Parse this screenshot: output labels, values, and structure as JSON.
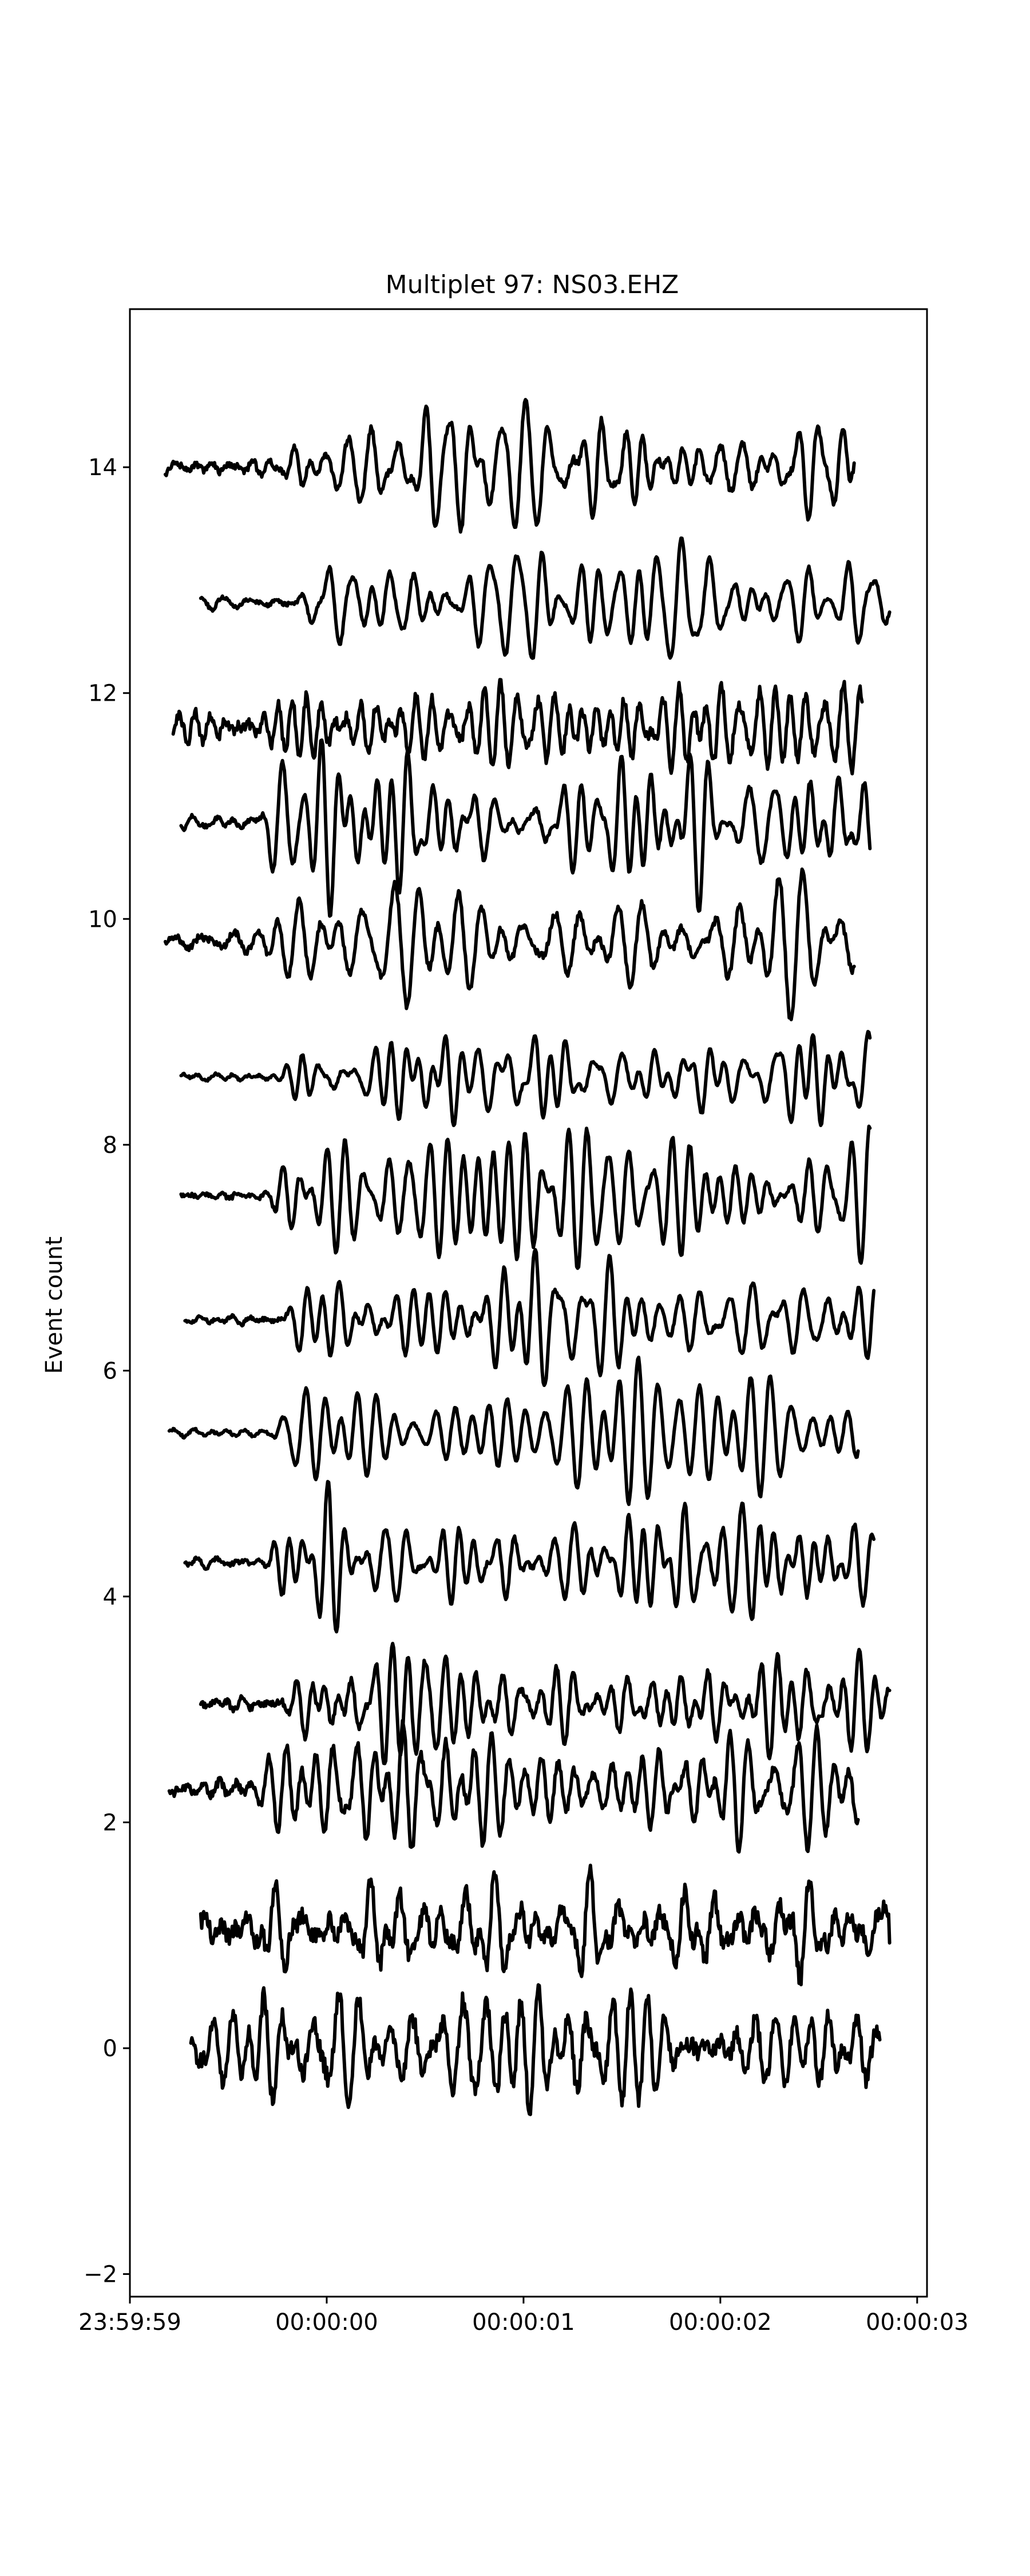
{
  "chart_data": {
    "type": "line",
    "title": "Multiplet 97: NS03.EHZ",
    "xlabel": "",
    "ylabel": "Event count",
    "xticks": [
      {
        "t": 0,
        "label": "23:59:59"
      },
      {
        "t": 1,
        "label": "00:00:00"
      },
      {
        "t": 2,
        "label": "00:00:01"
      },
      {
        "t": 3,
        "label": "00:00:02"
      },
      {
        "t": 4,
        "label": "00:00:03"
      }
    ],
    "yticks": [
      -2,
      0,
      2,
      4,
      6,
      8,
      10,
      12,
      14
    ],
    "xlim": [
      0,
      4.05
    ],
    "ylim": [
      -2.2,
      15.4
    ],
    "grid": false,
    "legend": "none",
    "trace_color": "#000000",
    "series": [
      {
        "offset": 14,
        "t_start": 0.18,
        "t_end": 3.68,
        "onset": 0.75,
        "pre_amp": 0.07,
        "post_amp": 0.42,
        "seed": 14
      },
      {
        "offset": 12.8,
        "t_start": 0.36,
        "t_end": 3.86,
        "onset": 0.85,
        "pre_amp": 0.04,
        "post_amp": 0.44,
        "seed": 13
      },
      {
        "offset": 11.7,
        "t_start": 0.22,
        "t_end": 3.72,
        "onset": 0.65,
        "pre_amp": 0.12,
        "post_amp": 0.4,
        "seed": 12
      },
      {
        "offset": 10.85,
        "t_start": 0.26,
        "t_end": 3.76,
        "onset": 0.6,
        "pre_amp": 0.05,
        "post_amp": 0.42,
        "seed": 11
      },
      {
        "offset": 9.8,
        "t_start": 0.18,
        "t_end": 3.68,
        "onset": 0.65,
        "pre_amp": 0.08,
        "post_amp": 0.45,
        "seed": 10
      },
      {
        "offset": 8.6,
        "t_start": 0.26,
        "t_end": 3.76,
        "onset": 0.75,
        "pre_amp": 0.03,
        "post_amp": 0.3,
        "seed": 9
      },
      {
        "offset": 7.55,
        "t_start": 0.26,
        "t_end": 3.76,
        "onset": 0.7,
        "pre_amp": 0.05,
        "post_amp": 0.5,
        "seed": 8
      },
      {
        "offset": 6.45,
        "t_start": 0.28,
        "t_end": 3.78,
        "onset": 0.75,
        "pre_amp": 0.04,
        "post_amp": 0.45,
        "seed": 7
      },
      {
        "offset": 5.45,
        "t_start": 0.2,
        "t_end": 3.7,
        "onset": 0.72,
        "pre_amp": 0.03,
        "post_amp": 0.42,
        "seed": 6
      },
      {
        "offset": 4.3,
        "t_start": 0.28,
        "t_end": 3.78,
        "onset": 0.7,
        "pre_amp": 0.05,
        "post_amp": 0.45,
        "seed": 5
      },
      {
        "offset": 3.05,
        "t_start": 0.36,
        "t_end": 3.86,
        "onset": 0.8,
        "pre_amp": 0.07,
        "post_amp": 0.42,
        "seed": 4
      },
      {
        "offset": 2.3,
        "t_start": 0.2,
        "t_end": 3.7,
        "onset": 0.6,
        "pre_amp": 0.1,
        "post_amp": 0.45,
        "seed": 3
      },
      {
        "offset": 1.05,
        "t_start": 0.36,
        "t_end": 3.86,
        "onset": 0.6,
        "pre_amp": 0.2,
        "post_amp": 0.4,
        "seed": 2
      },
      {
        "offset": 0.0,
        "t_start": 0.31,
        "t_end": 3.81,
        "onset": 0.5,
        "pre_amp": 0.2,
        "post_amp": 0.45,
        "seed": 1
      }
    ]
  }
}
